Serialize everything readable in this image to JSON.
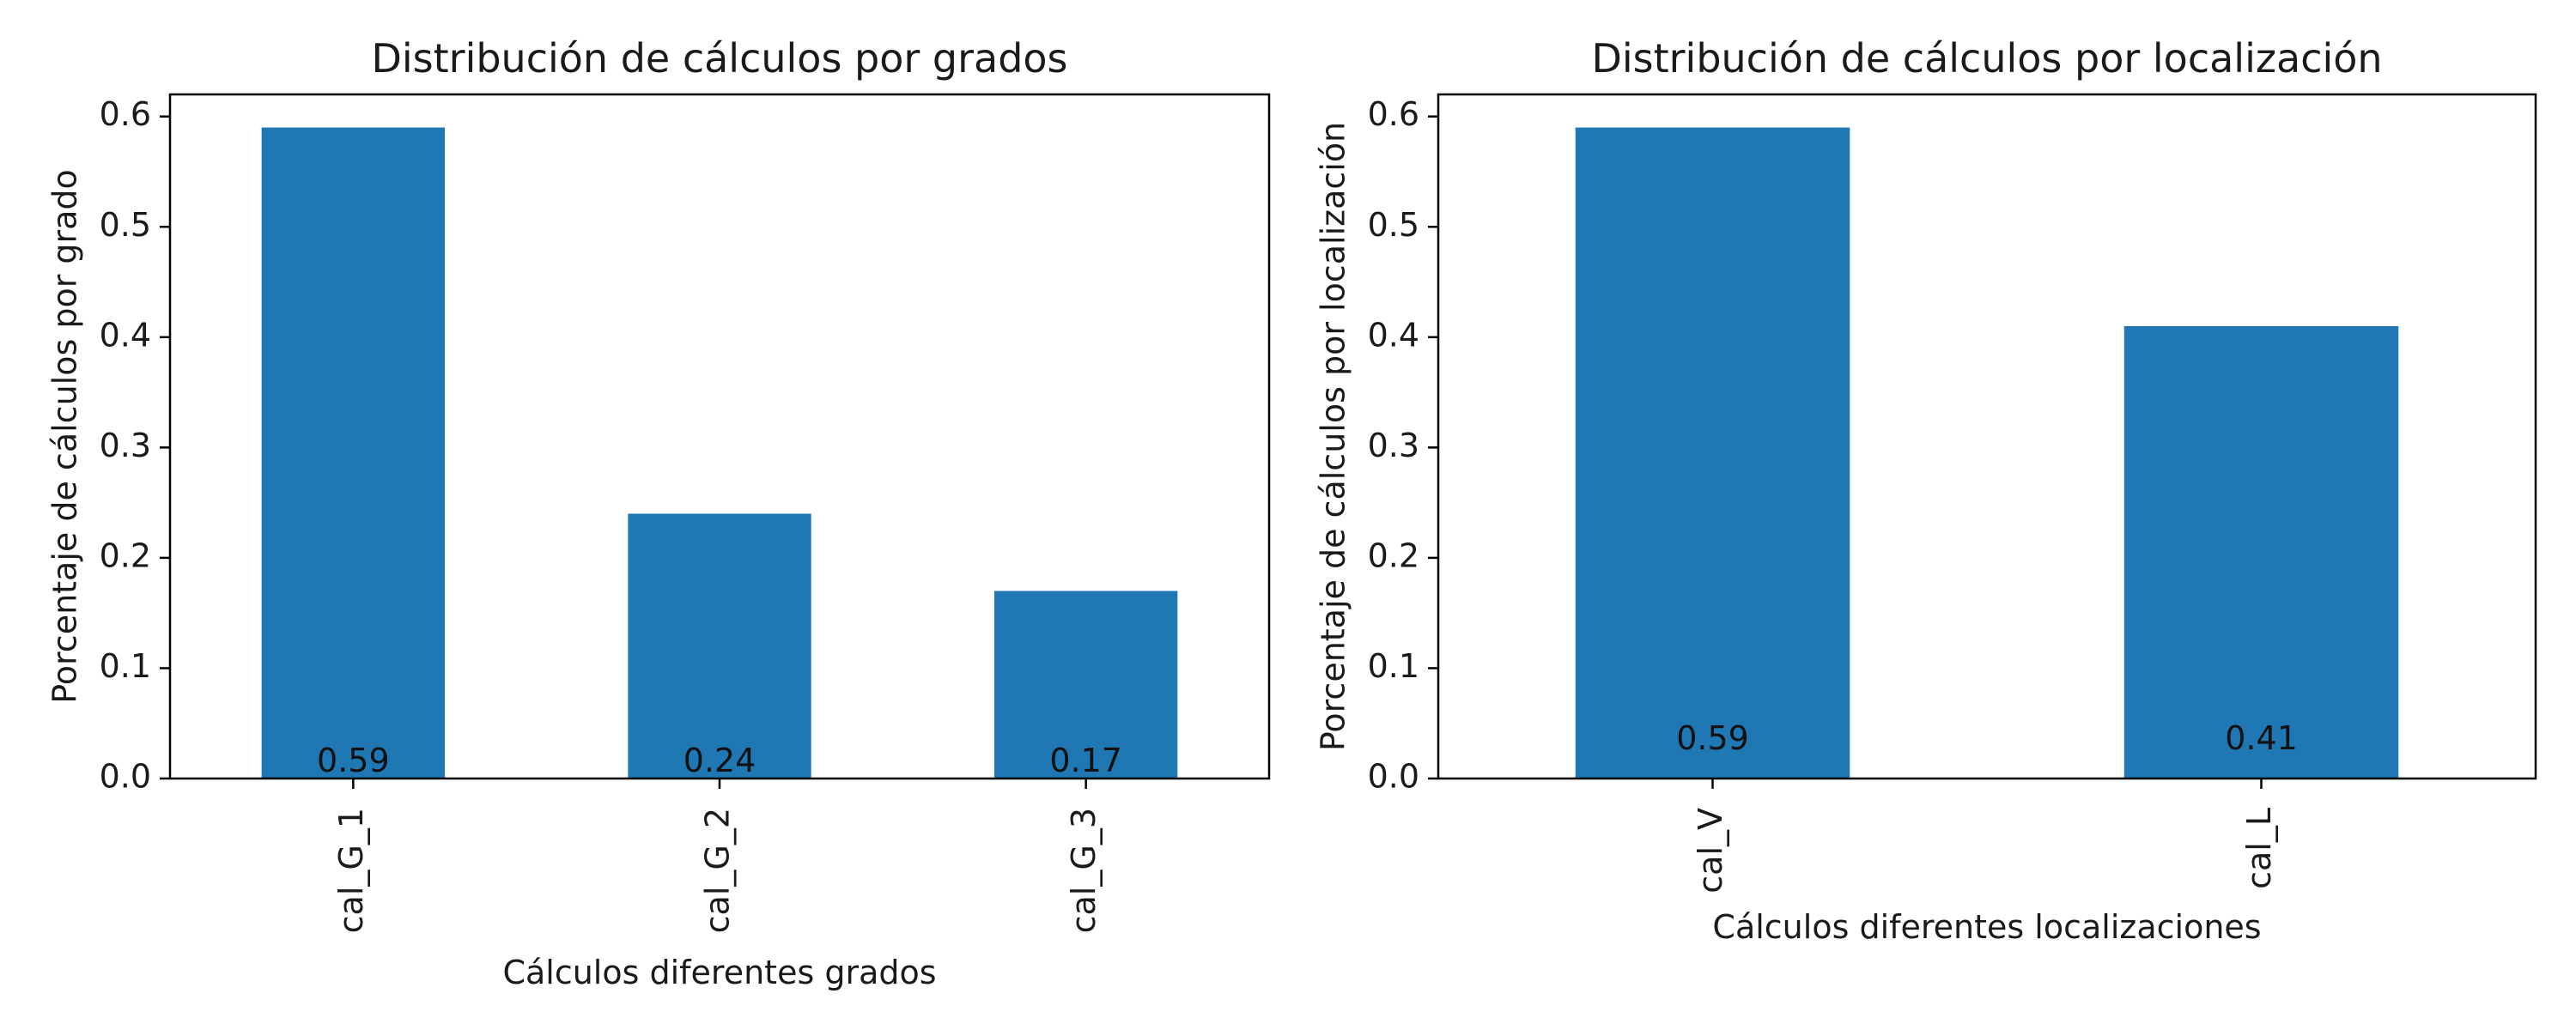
{
  "chart_data": [
    {
      "type": "bar",
      "title": "Distribución de cálculos por grados",
      "xlabel": "Cálculos diferentes grados",
      "ylabel": "Porcentaje de cálculos por grado",
      "categories": [
        "cal_G_1",
        "cal_G_2",
        "cal_G_3"
      ],
      "values": [
        0.59,
        0.24,
        0.17
      ],
      "data_labels": [
        "0.59",
        "0.24",
        "0.17"
      ],
      "ylim": [
        0,
        0.62
      ],
      "yticks": [
        0.0,
        0.1,
        0.2,
        0.3,
        0.4,
        0.5,
        0.6
      ],
      "ytick_labels": [
        "0.0",
        "0.1",
        "0.2",
        "0.3",
        "0.4",
        "0.5",
        "0.6"
      ],
      "grid": false,
      "legend": "none",
      "bar_color": "#1f77b4"
    },
    {
      "type": "bar",
      "title": "Distribución de cálculos por localización",
      "xlabel": "Cálculos diferentes localizaciones",
      "ylabel": "Porcentaje de cálculos por localización",
      "categories": [
        "cal_V",
        "cal_L"
      ],
      "values": [
        0.59,
        0.41
      ],
      "data_labels": [
        "0.59",
        "0.41"
      ],
      "ylim": [
        0,
        0.62
      ],
      "yticks": [
        0.0,
        0.1,
        0.2,
        0.3,
        0.4,
        0.5,
        0.6
      ],
      "ytick_labels": [
        "0.0",
        "0.1",
        "0.2",
        "0.3",
        "0.4",
        "0.5",
        "0.6"
      ],
      "grid": false,
      "legend": "none",
      "bar_color": "#1f77b4"
    }
  ]
}
